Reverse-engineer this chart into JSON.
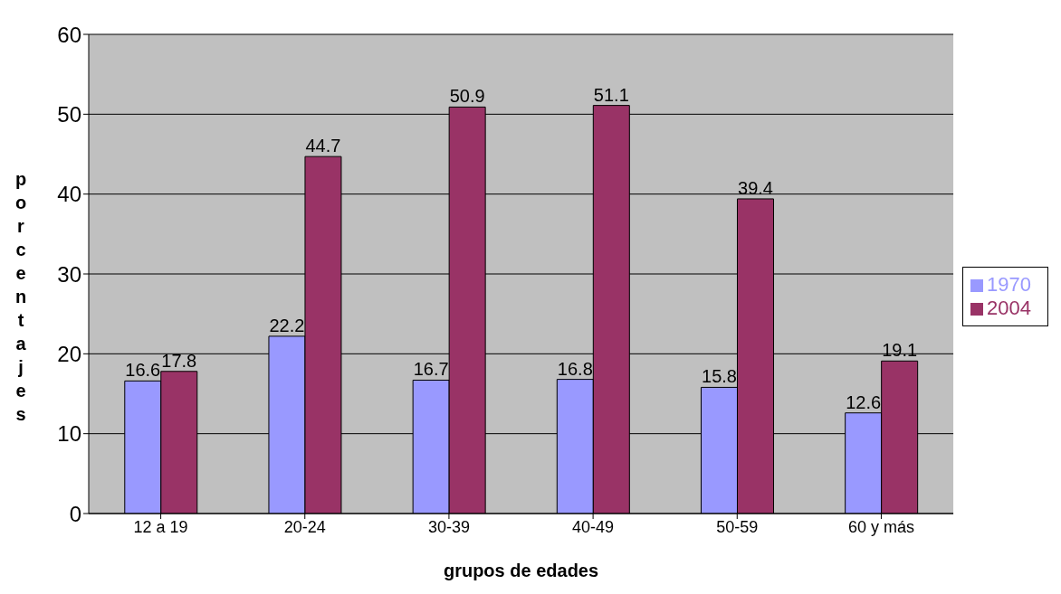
{
  "chart_data": {
    "type": "bar",
    "xlabel": "grupos de edades",
    "ylabel": "porcentajes",
    "categories": [
      "12 a 19",
      "20-24",
      "30-39",
      "40-49",
      "50-59",
      "60 y más"
    ],
    "series": [
      {
        "name": "1970",
        "color": "#9999ff",
        "values": [
          16.6,
          22.2,
          16.7,
          16.8,
          15.8,
          12.6
        ]
      },
      {
        "name": "2004",
        "color": "#993366",
        "values": [
          17.8,
          44.7,
          50.9,
          51.1,
          39.4,
          19.1
        ]
      }
    ],
    "ylim": [
      0,
      60
    ],
    "yticks": [
      0,
      10,
      20,
      30,
      40,
      50,
      60
    ],
    "grid": "y",
    "legend": "right",
    "data_labels": true
  }
}
